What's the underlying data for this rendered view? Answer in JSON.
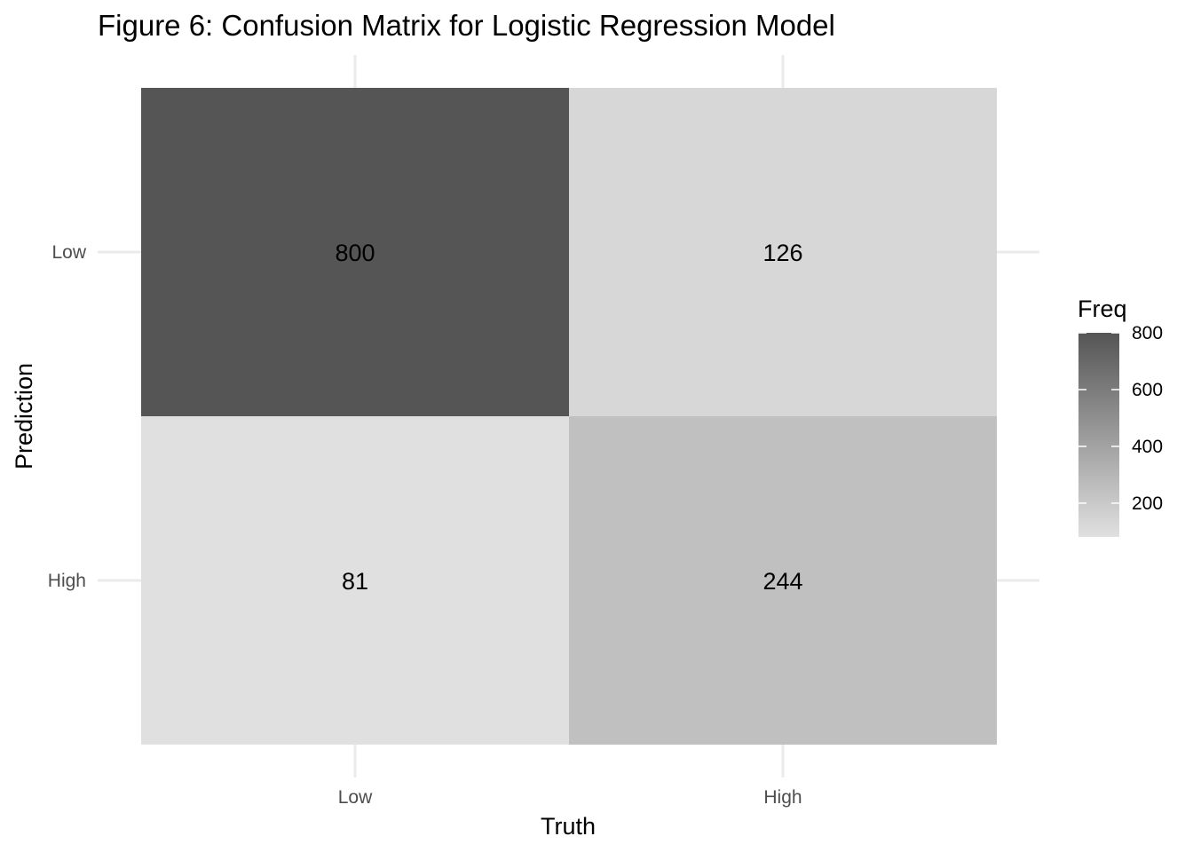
{
  "chart_data": {
    "type": "heatmap",
    "title": "Figure 6: Confusion Matrix for Logistic Regression Model",
    "xlabel": "Truth",
    "ylabel": "Prediction",
    "x_categories": [
      "Low",
      "High"
    ],
    "y_categories": [
      "Low",
      "High"
    ],
    "cells": [
      {
        "truth": "Low",
        "prediction": "Low",
        "value": 800
      },
      {
        "truth": "High",
        "prediction": "Low",
        "value": 126
      },
      {
        "truth": "Low",
        "prediction": "High",
        "value": 81
      },
      {
        "truth": "High",
        "prediction": "High",
        "value": 244
      }
    ],
    "legend": {
      "title": "Freq",
      "position": "right",
      "ticks": [
        200,
        400,
        600,
        800
      ],
      "range": [
        81,
        800
      ],
      "color_low": "#e0e0e0",
      "color_high": "#555555"
    },
    "grid": true
  }
}
